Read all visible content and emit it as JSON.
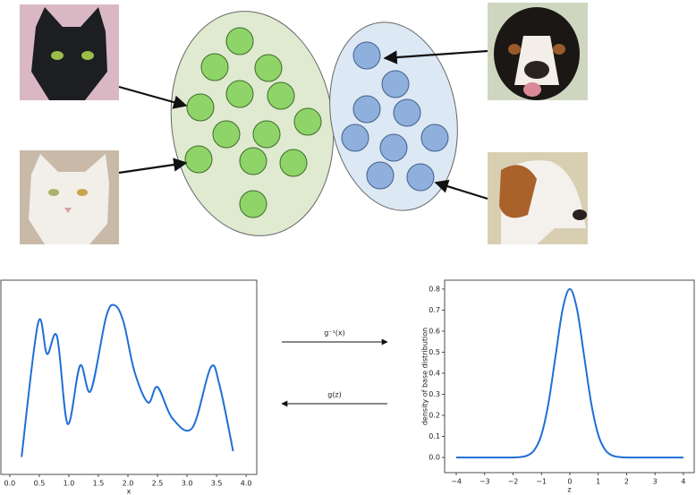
{
  "diagram": {
    "forward_label": "g⁻¹(x)",
    "inverse_label": "g(z)"
  },
  "chart_data": [
    {
      "type": "line",
      "xlabel": "x",
      "color": "#1f6fd6",
      "x": [
        0.2,
        0.48,
        0.63,
        0.8,
        0.98,
        1.19,
        1.37,
        1.63,
        1.78,
        1.93,
        2.11,
        2.34,
        2.5,
        2.75,
        3.09,
        3.4,
        3.55,
        3.78
      ],
      "values": [
        0.09,
        0.78,
        0.62,
        0.71,
        0.26,
        0.56,
        0.43,
        0.81,
        0.87,
        0.78,
        0.53,
        0.37,
        0.45,
        0.29,
        0.24,
        0.55,
        0.46,
        0.12
      ],
      "xlim": [
        -0.15,
        4.18
      ],
      "ylim": [
        0,
        1
      ],
      "xticks": [
        {
          "value": 0,
          "label": "0.0"
        },
        0.5,
        {
          "value": 1,
          "label": "1.0"
        },
        1.5,
        {
          "value": 2,
          "label": "2.0"
        },
        2.5,
        {
          "value": 3,
          "label": "3.0"
        },
        3.5,
        {
          "value": 4,
          "label": "4.0"
        }
      ]
    },
    {
      "type": "line",
      "xlabel": "z",
      "ylabel": "density of base distribution",
      "color": "#1f6fd6",
      "x": [
        -4,
        -3.75,
        -3.5,
        -3.25,
        -3,
        -2.75,
        -2.5,
        -2.25,
        -2,
        -1.75,
        -1.5,
        -1.25,
        -1,
        -0.75,
        -0.5,
        -0.25,
        0,
        0.25,
        0.5,
        0.75,
        1,
        1.25,
        1.5,
        1.75,
        2,
        2.25,
        2.5,
        2.75,
        3,
        3.25,
        3.5,
        3.75,
        4
      ],
      "values": [
        0,
        0,
        0,
        0,
        0,
        0,
        0,
        0,
        0,
        0.002,
        0.009,
        0.035,
        0.108,
        0.26,
        0.485,
        0.706,
        0.8,
        0.706,
        0.485,
        0.26,
        0.108,
        0.035,
        0.009,
        0.002,
        0,
        0,
        0,
        0,
        0,
        0,
        0,
        0,
        0
      ],
      "xlim": [
        -4.41,
        4.38
      ],
      "ylim": [
        -0.072,
        0.842
      ],
      "xticks": [
        {
          "value": -4,
          "label": "−4"
        },
        {
          "value": -3,
          "label": "−3"
        },
        {
          "value": -2,
          "label": "−2"
        },
        {
          "value": -1,
          "label": "−1"
        },
        0,
        1,
        2,
        3,
        4
      ],
      "yticks": [
        {
          "value": 0,
          "label": "0.0"
        },
        0.1,
        0.2,
        0.3,
        0.4,
        0.5,
        0.6,
        0.7,
        0.8
      ]
    }
  ]
}
